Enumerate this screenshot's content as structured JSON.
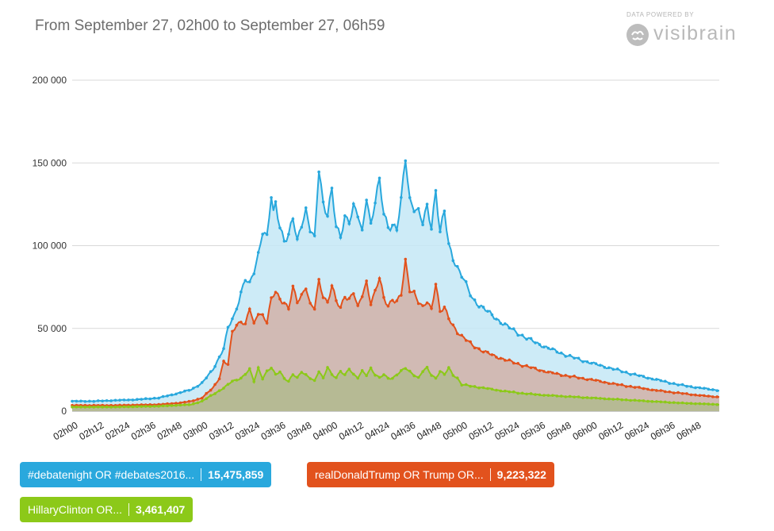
{
  "header": {
    "title": "From September 27, 02h00 to September 27, 06h59",
    "brand_caption": "DATA POWERED BY",
    "brand_name": "visibrain",
    "brand_icon": "brain-icon"
  },
  "legend": [
    {
      "name": "#debatenight OR #debates2016...",
      "count": "15,475,859",
      "color": "#29a8dd"
    },
    {
      "name": "realDonaldTrump OR Trump OR...",
      "count": "9,223,322",
      "color": "#e2521d"
    },
    {
      "name": "HillaryClinton OR...",
      "count": "3,461,407",
      "color": "#8cc919"
    }
  ],
  "chart_data": {
    "type": "area",
    "x_start": "02h00",
    "x_end": "06h59",
    "x_step_minutes": 1,
    "x_tick_labels": [
      "02h00",
      "02h12",
      "02h24",
      "02h36",
      "02h48",
      "03h00",
      "03h12",
      "03h24",
      "03h36",
      "03h48",
      "04h00",
      "04h12",
      "04h24",
      "04h36",
      "04h48",
      "05h00",
      "05h12",
      "05h24",
      "05h36",
      "05h48",
      "06h00",
      "06h12",
      "06h24",
      "06h36",
      "06h48"
    ],
    "y_ticks": [
      0,
      50000,
      100000,
      150000,
      200000
    ],
    "y_tick_labels": [
      "0",
      "50 000",
      "100 000",
      "150 000",
      "200 000"
    ],
    "ylim": [
      0,
      200000
    ],
    "grid": true,
    "series": [
      {
        "name": "#debatenight OR #debates2016...",
        "color": "#29a8dd",
        "fill": "#c4e8f6",
        "keypoints": [
          [
            0,
            6000
          ],
          [
            10,
            6000
          ],
          [
            20,
            6500
          ],
          [
            30,
            7000
          ],
          [
            40,
            8000
          ],
          [
            48,
            10500
          ],
          [
            55,
            13000
          ],
          [
            60,
            17000
          ],
          [
            65,
            25000
          ],
          [
            70,
            38000
          ],
          [
            72,
            50000
          ],
          [
            75,
            58000
          ],
          [
            78,
            72000
          ],
          [
            80,
            80000
          ],
          [
            82,
            76000
          ],
          [
            84,
            84000
          ],
          [
            86,
            95000
          ],
          [
            88,
            110000
          ],
          [
            90,
            105000
          ],
          [
            92,
            129000
          ],
          [
            93,
            118000
          ],
          [
            94,
            125000
          ],
          [
            96,
            112000
          ],
          [
            98,
            104000
          ],
          [
            100,
            106000
          ],
          [
            102,
            116000
          ],
          [
            104,
            102000
          ],
          [
            106,
            114000
          ],
          [
            108,
            122000
          ],
          [
            110,
            110000
          ],
          [
            112,
            103000
          ],
          [
            114,
            146000
          ],
          [
            116,
            126000
          ],
          [
            118,
            120000
          ],
          [
            120,
            134000
          ],
          [
            122,
            110000
          ],
          [
            124,
            105000
          ],
          [
            126,
            118000
          ],
          [
            128,
            116000
          ],
          [
            130,
            123000
          ],
          [
            132,
            118000
          ],
          [
            134,
            107000
          ],
          [
            136,
            131000
          ],
          [
            138,
            113000
          ],
          [
            140,
            127000
          ],
          [
            142,
            138000
          ],
          [
            144,
            119000
          ],
          [
            146,
            112000
          ],
          [
            148,
            113000
          ],
          [
            150,
            110000
          ],
          [
            152,
            126000
          ],
          [
            154,
            153000
          ],
          [
            156,
            128000
          ],
          [
            158,
            124000
          ],
          [
            160,
            120000
          ],
          [
            162,
            113000
          ],
          [
            164,
            123000
          ],
          [
            166,
            112000
          ],
          [
            168,
            134000
          ],
          [
            170,
            108000
          ],
          [
            172,
            120000
          ],
          [
            174,
            100000
          ],
          [
            176,
            93000
          ],
          [
            178,
            87000
          ],
          [
            180,
            82000
          ],
          [
            182,
            76000
          ],
          [
            185,
            68000
          ],
          [
            190,
            62000
          ],
          [
            200,
            52000
          ],
          [
            210,
            44000
          ],
          [
            220,
            38000
          ],
          [
            230,
            33000
          ],
          [
            240,
            29000
          ],
          [
            250,
            25500
          ],
          [
            260,
            22000
          ],
          [
            270,
            19000
          ],
          [
            280,
            16000
          ],
          [
            290,
            14000
          ],
          [
            299,
            12500
          ]
        ]
      },
      {
        "name": "realDonaldTrump OR Trump OR...",
        "color": "#e2521d",
        "fill": "#d1b2a8",
        "keypoints": [
          [
            0,
            3500
          ],
          [
            20,
            3500
          ],
          [
            40,
            4000
          ],
          [
            50,
            5000
          ],
          [
            55,
            6000
          ],
          [
            60,
            8000
          ],
          [
            65,
            14000
          ],
          [
            68,
            20000
          ],
          [
            70,
            30000
          ],
          [
            72,
            28000
          ],
          [
            74,
            48000
          ],
          [
            76,
            52000
          ],
          [
            78,
            55000
          ],
          [
            80,
            52000
          ],
          [
            82,
            62000
          ],
          [
            84,
            52000
          ],
          [
            86,
            60000
          ],
          [
            88,
            58000
          ],
          [
            90,
            54000
          ],
          [
            92,
            67000
          ],
          [
            94,
            72000
          ],
          [
            96,
            68000
          ],
          [
            98,
            66000
          ],
          [
            100,
            62000
          ],
          [
            102,
            74000
          ],
          [
            104,
            66000
          ],
          [
            106,
            70000
          ],
          [
            108,
            76000
          ],
          [
            110,
            64000
          ],
          [
            112,
            62000
          ],
          [
            114,
            78000
          ],
          [
            116,
            70000
          ],
          [
            118,
            66000
          ],
          [
            120,
            76000
          ],
          [
            122,
            66000
          ],
          [
            124,
            62000
          ],
          [
            126,
            70000
          ],
          [
            128,
            68000
          ],
          [
            130,
            72000
          ],
          [
            132,
            62000
          ],
          [
            134,
            70000
          ],
          [
            136,
            78000
          ],
          [
            138,
            66000
          ],
          [
            140,
            72000
          ],
          [
            142,
            80000
          ],
          [
            144,
            68000
          ],
          [
            146,
            64000
          ],
          [
            148,
            68000
          ],
          [
            150,
            66000
          ],
          [
            152,
            70000
          ],
          [
            154,
            90000
          ],
          [
            156,
            74000
          ],
          [
            158,
            72000
          ],
          [
            160,
            66000
          ],
          [
            162,
            62000
          ],
          [
            164,
            66000
          ],
          [
            166,
            62000
          ],
          [
            168,
            78000
          ],
          [
            170,
            60000
          ],
          [
            172,
            62000
          ],
          [
            174,
            56000
          ],
          [
            176,
            52000
          ],
          [
            178,
            48000
          ],
          [
            180,
            45000
          ],
          [
            185,
            40000
          ],
          [
            190,
            36000
          ],
          [
            200,
            31000
          ],
          [
            210,
            27000
          ],
          [
            220,
            23500
          ],
          [
            230,
            21000
          ],
          [
            240,
            19000
          ],
          [
            250,
            16500
          ],
          [
            260,
            14500
          ],
          [
            270,
            12500
          ],
          [
            280,
            11000
          ],
          [
            290,
            9500
          ],
          [
            299,
            8500
          ]
        ]
      },
      {
        "name": "HillaryClinton OR...",
        "color": "#8cc919",
        "fill": "#b2ba8e",
        "keypoints": [
          [
            0,
            2500
          ],
          [
            20,
            2500
          ],
          [
            40,
            3000
          ],
          [
            55,
            4000
          ],
          [
            60,
            6000
          ],
          [
            65,
            10000
          ],
          [
            70,
            14000
          ],
          [
            74,
            18000
          ],
          [
            78,
            20000
          ],
          [
            82,
            25000
          ],
          [
            84,
            18000
          ],
          [
            86,
            26000
          ],
          [
            88,
            20000
          ],
          [
            90,
            24000
          ],
          [
            92,
            26000
          ],
          [
            94,
            22000
          ],
          [
            96,
            24000
          ],
          [
            98,
            20000
          ],
          [
            100,
            18000
          ],
          [
            102,
            22000
          ],
          [
            104,
            20000
          ],
          [
            106,
            24000
          ],
          [
            108,
            22000
          ],
          [
            110,
            20000
          ],
          [
            112,
            18000
          ],
          [
            114,
            24000
          ],
          [
            116,
            20000
          ],
          [
            118,
            27000
          ],
          [
            120,
            22000
          ],
          [
            122,
            20000
          ],
          [
            124,
            24000
          ],
          [
            126,
            22000
          ],
          [
            128,
            26000
          ],
          [
            130,
            22000
          ],
          [
            132,
            20000
          ],
          [
            134,
            24000
          ],
          [
            136,
            22000
          ],
          [
            138,
            26000
          ],
          [
            140,
            22000
          ],
          [
            142,
            20000
          ],
          [
            144,
            22000
          ],
          [
            146,
            20000
          ],
          [
            148,
            20000
          ],
          [
            150,
            22000
          ],
          [
            152,
            24000
          ],
          [
            154,
            26000
          ],
          [
            156,
            24000
          ],
          [
            158,
            22000
          ],
          [
            160,
            20000
          ],
          [
            162,
            24000
          ],
          [
            164,
            26000
          ],
          [
            166,
            22000
          ],
          [
            168,
            20000
          ],
          [
            170,
            24000
          ],
          [
            172,
            22000
          ],
          [
            174,
            26000
          ],
          [
            176,
            22000
          ],
          [
            178,
            20000
          ],
          [
            180,
            16000
          ],
          [
            190,
            14000
          ],
          [
            200,
            12000
          ],
          [
            210,
            10500
          ],
          [
            220,
            9500
          ],
          [
            240,
            8000
          ],
          [
            260,
            6500
          ],
          [
            280,
            5000
          ],
          [
            299,
            4000
          ]
        ]
      }
    ]
  }
}
